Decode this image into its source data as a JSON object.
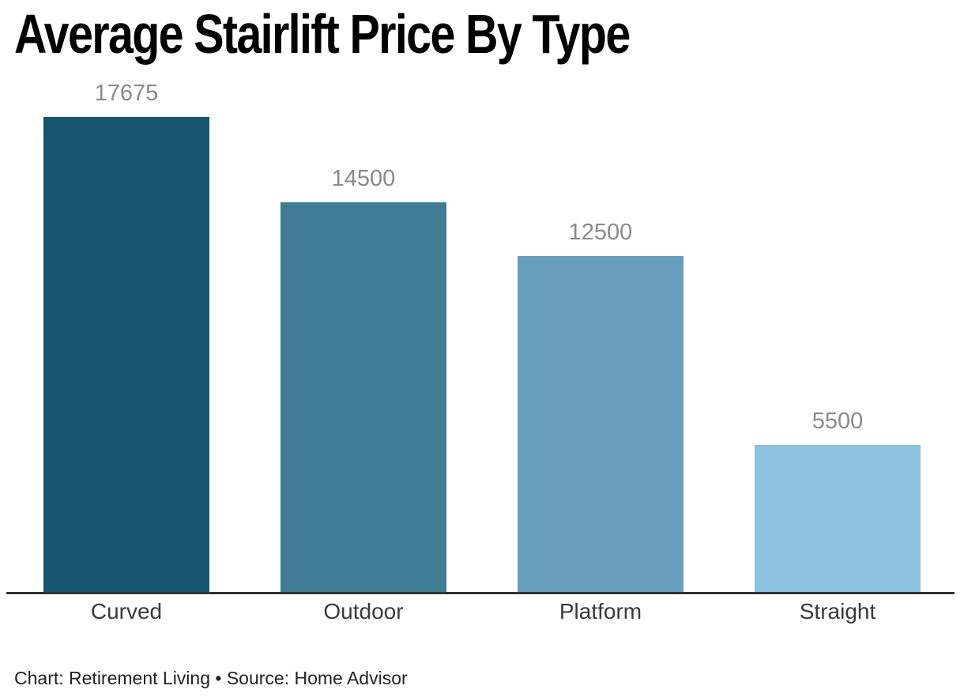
{
  "title": "Average Stairlift Price By Type",
  "credit": "Chart: Retirement Living • Source: Home Advisor",
  "colors": {
    "title": "#000000",
    "value_label": "#8a8a8a",
    "category_label": "#3a3a3a",
    "axis_line": "#333333",
    "background": "#ffffff"
  },
  "chart_data": {
    "type": "bar",
    "title": "Average Stairlift Price By Type",
    "categories": [
      "Curved",
      "Outdoor",
      "Platform",
      "Straight"
    ],
    "values": [
      17675,
      14500,
      12500,
      5500
    ],
    "value_labels": [
      "17675",
      "14500",
      "12500",
      "5500"
    ],
    "bar_colors": [
      "#17566E",
      "#3F7B93",
      "#689EBE",
      "#8BC3DF"
    ],
    "xlabel": "",
    "ylabel": "",
    "ylim": [
      0,
      18250
    ],
    "grid": false,
    "legend": false,
    "orientation": "vertical",
    "value_labels_position": "above-bars",
    "credit": "Chart: Retirement Living • Source: Home Advisor"
  }
}
